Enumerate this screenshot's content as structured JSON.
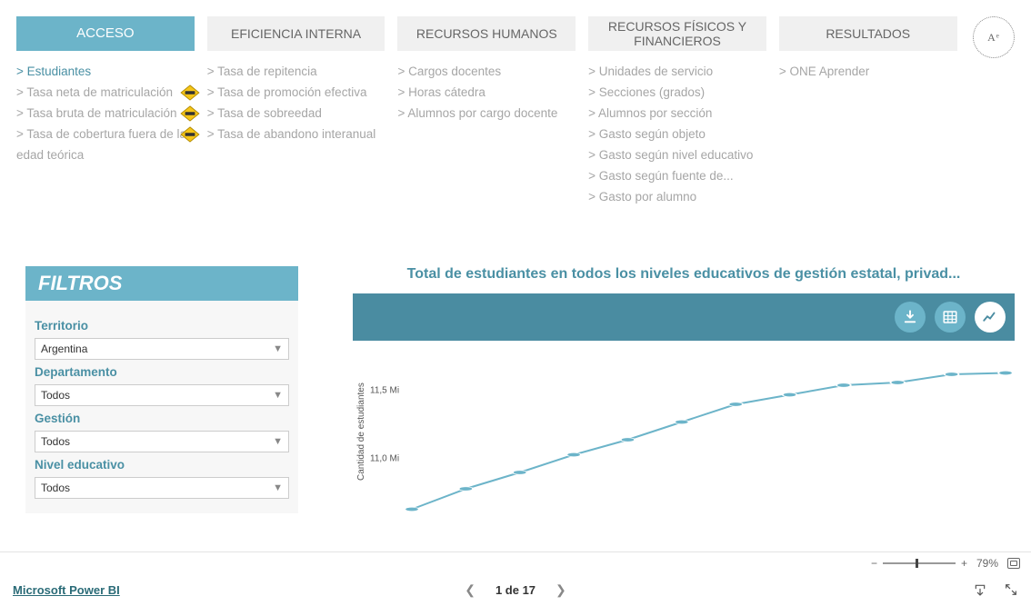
{
  "tabs": [
    {
      "label": "ACCESO",
      "active": true,
      "links": [
        {
          "text": "> Estudiantes",
          "active": true,
          "badge": false
        },
        {
          "text": "> Tasa neta de matriculación",
          "active": false,
          "badge": true
        },
        {
          "text": "> Tasa bruta de matriculación",
          "active": false,
          "badge": true
        },
        {
          "text": "> Tasa de cobertura fuera de la edad teórica",
          "active": false,
          "badge": true
        }
      ]
    },
    {
      "label": "EFICIENCIA INTERNA",
      "active": false,
      "links": [
        {
          "text": "> Tasa de repitencia",
          "active": false,
          "badge": false
        },
        {
          "text": "> Tasa de promoción efectiva",
          "active": false,
          "badge": false
        },
        {
          "text": "> Tasa de sobreedad",
          "active": false,
          "badge": false
        },
        {
          "text": "> Tasa de abandono interanual",
          "active": false,
          "badge": false
        }
      ]
    },
    {
      "label": "RECURSOS HUMANOS",
      "active": false,
      "links": [
        {
          "text": "> Cargos docentes",
          "active": false,
          "badge": false
        },
        {
          "text": "> Horas cátedra",
          "active": false,
          "badge": false
        },
        {
          "text": "> Alumnos por cargo docente",
          "active": false,
          "badge": false
        }
      ]
    },
    {
      "label": "RECURSOS FÍSICOS Y FINANCIEROS",
      "active": false,
      "links": [
        {
          "text": "> Unidades de servicio",
          "active": false,
          "badge": false
        },
        {
          "text": "> Secciones (grados)",
          "active": false,
          "badge": false
        },
        {
          "text": "> Alumnos por sección",
          "active": false,
          "badge": false
        },
        {
          "text": "> Gasto según objeto",
          "active": false,
          "badge": false
        },
        {
          "text": "> Gasto según nivel educativo",
          "active": false,
          "badge": false
        },
        {
          "text": "> Gasto según fuente de...",
          "active": false,
          "badge": false
        },
        {
          "text": "> Gasto por alumno",
          "active": false,
          "badge": false
        }
      ]
    },
    {
      "label": "RESULTADOS",
      "active": false,
      "links": [
        {
          "text": "> ONE Aprender",
          "active": false,
          "badge": false
        }
      ]
    }
  ],
  "logo": "Aᵉ",
  "filters": {
    "title": "FILTROS",
    "items": [
      {
        "label": "Territorio",
        "value": "Argentina"
      },
      {
        "label": "Departamento",
        "value": "Todos"
      },
      {
        "label": "Gestión",
        "value": "Todos"
      },
      {
        "label": "Nivel educativo",
        "value": "Todos"
      }
    ]
  },
  "chart": {
    "title": "Total de estudiantes en todos los niveles educativos de gestión estatal, privad...",
    "ylabel": "Cantidad de estudiantes",
    "type": "line",
    "line_color": "#6cb4c9",
    "marker_color": "#6cb4c9",
    "marker_size": 5,
    "line_width": 2,
    "background_color": "#ffffff",
    "ylim": [
      10.6,
      11.8
    ],
    "yticks": [
      {
        "label": "11,5 Mi",
        "value": 11.5
      },
      {
        "label": "11,0 Mi",
        "value": 11.0
      }
    ],
    "points": [
      10.63,
      10.78,
      10.9,
      11.03,
      11.14,
      11.27,
      11.4,
      11.47,
      11.54,
      11.56,
      11.62,
      11.63
    ]
  },
  "toolbar": {
    "download": "download",
    "table": "table",
    "chart": "chart"
  },
  "status": {
    "zoom": "79%",
    "slider_pos": 0.45
  },
  "nav": {
    "powerbi": "Microsoft Power BI",
    "page_label": "1 de 17"
  }
}
